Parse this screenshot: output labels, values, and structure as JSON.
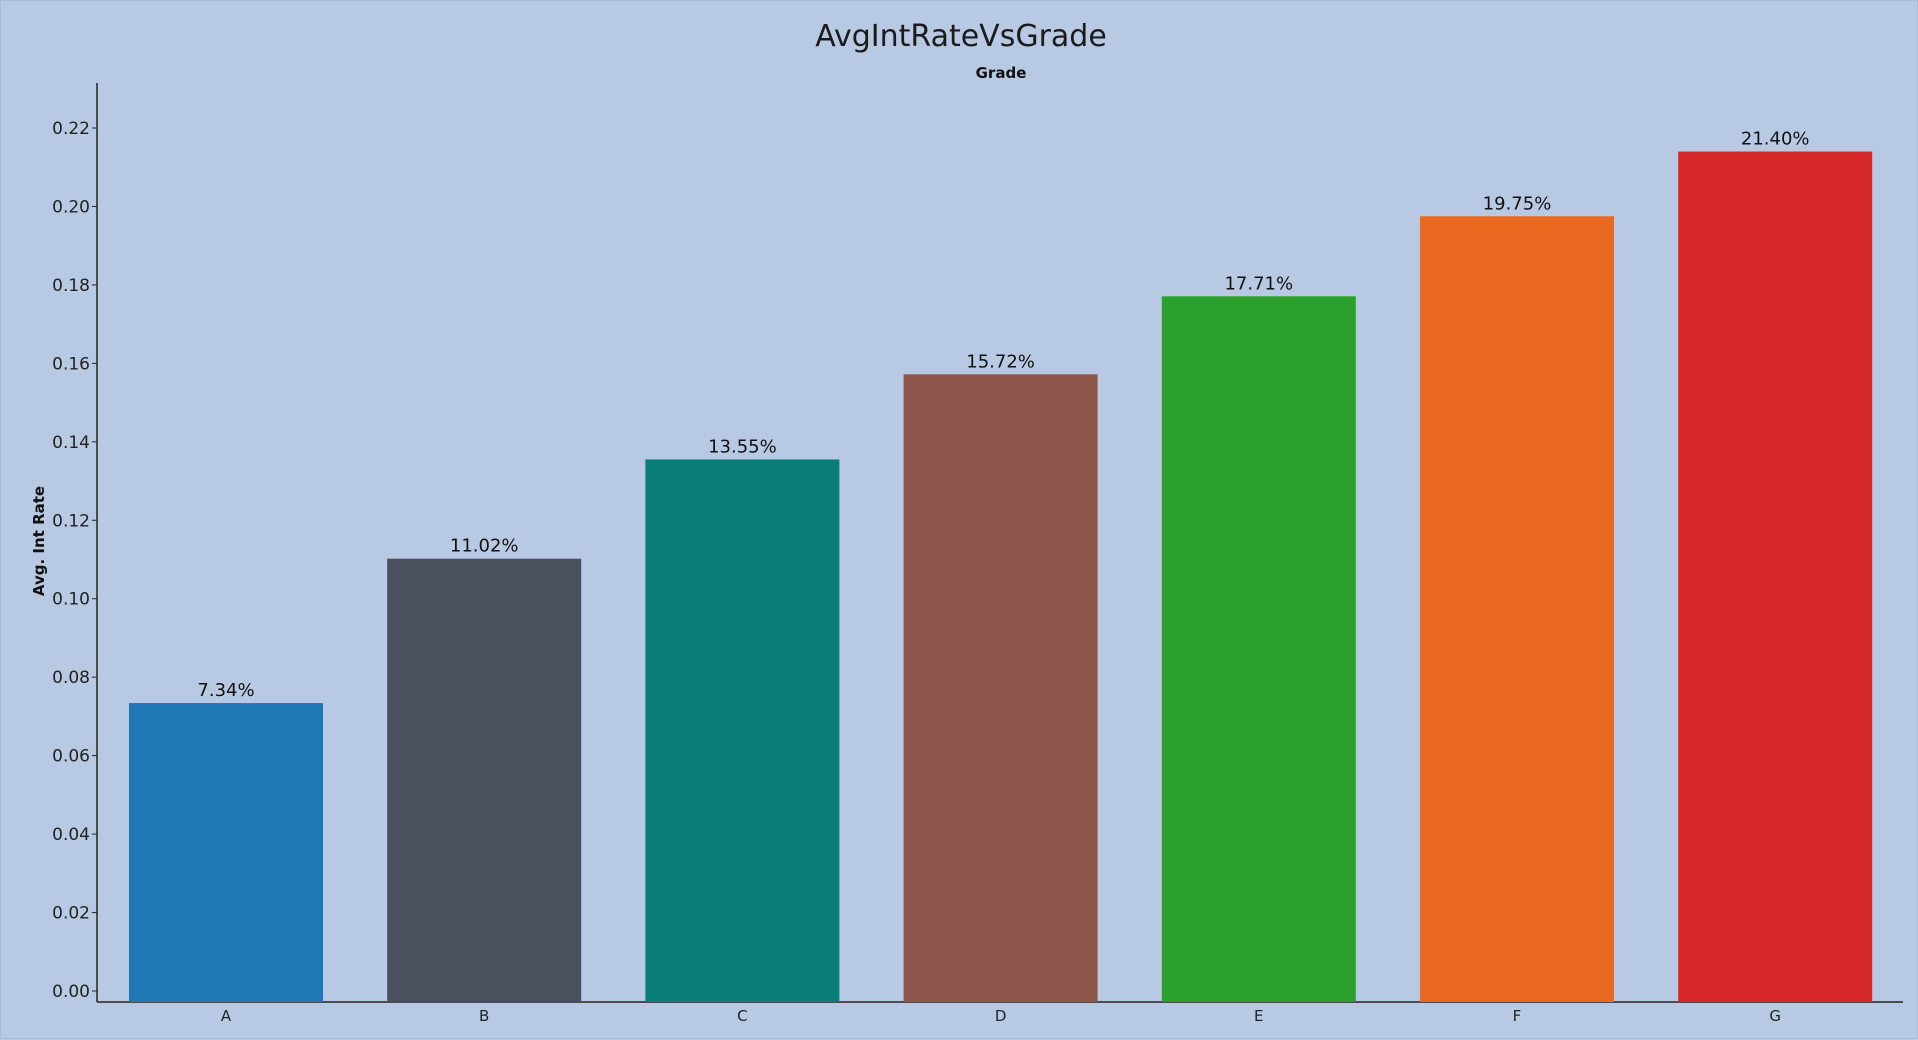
{
  "chart_data": {
    "type": "bar",
    "title": "AvgIntRateVsGrade",
    "xlabel": "Grade",
    "ylabel": "Avg. Int Rate",
    "categories": [
      "A",
      "B",
      "C",
      "D",
      "E",
      "F",
      "G"
    ],
    "values": [
      0.0734,
      0.1102,
      0.1355,
      0.1572,
      0.1771,
      0.1975,
      0.214
    ],
    "data_labels": [
      "7.34%",
      "11.02%",
      "13.55%",
      "15.72%",
      "17.71%",
      "19.75%",
      "21.40%"
    ],
    "colors": [
      "#1f77b4",
      "#4a505d",
      "#087e76",
      "#8b5649",
      "#2ca02c",
      "#e8691f",
      "#d62728"
    ],
    "yticks": [
      "0.00",
      "0.02",
      "0.04",
      "0.06",
      "0.08",
      "0.10",
      "0.12",
      "0.14",
      "0.16",
      "0.18",
      "0.20",
      "0.22"
    ],
    "ylim": [
      0,
      0.23
    ],
    "grid": false,
    "legend": "none",
    "background": "#b8cae3"
  }
}
